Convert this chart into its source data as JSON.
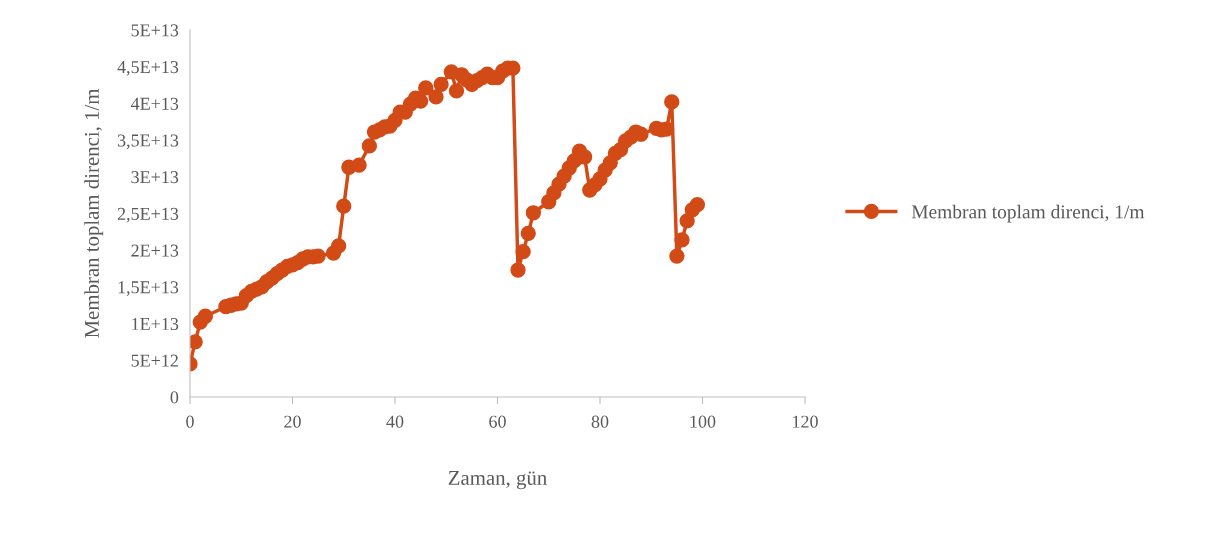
{
  "chart_data": {
    "type": "line",
    "xlabel": "Zaman, gün",
    "ylabel": "Membran toplam direnci, 1/m",
    "series": [
      {
        "name": "Membran toplam direnci, 1/m",
        "color": "#d24b17",
        "x": [
          0,
          1,
          2,
          3,
          7,
          8,
          9,
          10,
          11,
          12,
          13,
          14,
          15,
          16,
          17,
          18,
          19,
          20,
          21,
          22,
          23,
          24,
          25,
          28,
          29,
          30,
          31,
          33,
          35,
          36,
          37,
          38,
          39,
          40,
          41,
          42,
          43,
          44,
          45,
          46,
          48,
          49,
          51,
          52,
          53,
          54,
          55,
          56,
          57,
          58,
          59,
          60,
          61,
          62,
          63,
          64,
          65,
          66,
          67,
          70,
          71,
          72,
          73,
          74,
          75,
          76,
          77,
          78,
          79,
          80,
          81,
          82,
          83,
          84,
          85,
          86,
          87,
          88,
          91,
          92,
          93,
          94,
          95,
          96,
          97,
          98,
          99
        ],
        "values": [
          4500000000000.0,
          7500000000000.0,
          10200000000000.0,
          11000000000000.0,
          12300000000000.0,
          12500000000000.0,
          12700000000000.0,
          12800000000000.0,
          13800000000000.0,
          14400000000000.0,
          14700000000000.0,
          15000000000000.0,
          15700000000000.0,
          16200000000000.0,
          16800000000000.0,
          17300000000000.0,
          17800000000000.0,
          18000000000000.0,
          18300000000000.0,
          18800000000000.0,
          19100000000000.0,
          19100000000000.0,
          19200000000000.0,
          19600000000000.0,
          20600000000000.0,
          26000000000000.0,
          31300000000000.0,
          31600000000000.0,
          34200000000000.0,
          36100000000000.0,
          36400000000000.0,
          36800000000000.0,
          36900000000000.0,
          37700000000000.0,
          38800000000000.0,
          38800000000000.0,
          39900000000000.0,
          40700000000000.0,
          40300000000000.0,
          42100000000000.0,
          40900000000000.0,
          42600000000000.0,
          44300000000000.0,
          41700000000000.0,
          43900000000000.0,
          43200000000000.0,
          42600000000000.0,
          43100000000000.0,
          43500000000000.0,
          44000000000000.0,
          43500000000000.0,
          43500000000000.0,
          44400000000000.0,
          44800000000000.0,
          44800000000000.0,
          17300000000000.0,
          19800000000000.0,
          22300000000000.0,
          25100000000000.0,
          26600000000000.0,
          27800000000000.0,
          29000000000000.0,
          30100000000000.0,
          31200000000000.0,
          32200000000000.0,
          33500000000000.0,
          32700000000000.0,
          28200000000000.0,
          28900000000000.0,
          29700000000000.0,
          30900000000000.0,
          31900000000000.0,
          33200000000000.0,
          33700000000000.0,
          34900000000000.0,
          35400000000000.0,
          36100000000000.0,
          35800000000000.0,
          36600000000000.0,
          36400000000000.0,
          36500000000000.0,
          40200000000000.0,
          19200000000000.0,
          21400000000000.0,
          24000000000000.0,
          25500000000000.0,
          26200000000000.0
        ]
      }
    ],
    "xlim": [
      0,
      120
    ],
    "xticks": [
      0,
      20,
      40,
      60,
      80,
      100,
      120
    ],
    "ylim": [
      0,
      50000000000000.0
    ],
    "yticks": [
      0,
      {
        "value": 5000000000000.0,
        "label": "5E+12"
      },
      {
        "value": 10000000000000.0,
        "label": "1E+13"
      },
      {
        "value": 15000000000000.0,
        "label": "1,5E+13"
      },
      {
        "value": 20000000000000.0,
        "label": "2E+13"
      },
      {
        "value": 25000000000000.0,
        "label": "2,5E+13"
      },
      {
        "value": 30000000000000.0,
        "label": "3E+13"
      },
      {
        "value": 35000000000000.0,
        "label": "3,5E+13"
      },
      {
        "value": 40000000000000.0,
        "label": "4E+13"
      },
      {
        "value": 45000000000000.0,
        "label": "4,5E+13"
      },
      {
        "value": 50000000000000.0,
        "label": "5E+13"
      }
    ],
    "grid": false,
    "legend": "right",
    "marker": "circle",
    "line_style": "solid"
  }
}
